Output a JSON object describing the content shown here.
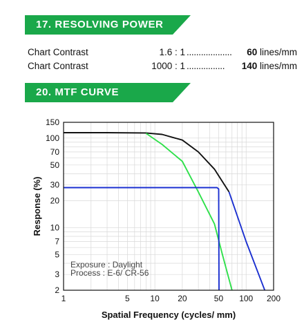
{
  "resolving": {
    "heading": "17.  RESOLVING  POWER",
    "rows": [
      {
        "label": "Chart Contrast",
        "ratio": "1.6 : 1",
        "dots": "...................",
        "value": "60",
        "unit": "lines/mm"
      },
      {
        "label": "Chart Contrast",
        "ratio": "1000 : 1",
        "dots": "................",
        "value": "140",
        "unit": "lines/mm"
      }
    ]
  },
  "mtf": {
    "heading": "20.  MTF  CURVE",
    "note_exposure": "Exposure : Daylight",
    "note_process": "Process   : E-6/ CR-56"
  },
  "colors": {
    "accent": "#1aa84a",
    "black": "#111111",
    "green": "#2ee04a",
    "blue": "#1a2fd0"
  },
  "chart_data": {
    "type": "line",
    "xlabel": "Spatial Frequency (cycles/ mm)",
    "ylabel": "Response (%)",
    "xscale": "log",
    "yscale": "log",
    "xlim": [
      1,
      200
    ],
    "ylim": [
      2,
      150
    ],
    "xticks": [
      1,
      5,
      10,
      20,
      50,
      100,
      200
    ],
    "yticks": [
      150,
      100,
      70,
      50,
      30,
      20,
      10,
      7,
      5,
      3,
      2
    ],
    "series": [
      {
        "color": "#111111",
        "x": [
          1,
          3,
          8,
          12,
          20,
          30,
          45,
          65
        ],
        "y": [
          115,
          115,
          114,
          110,
          95,
          70,
          45,
          25
        ]
      },
      {
        "color": "#2ee04a",
        "x": [
          8,
          12,
          20,
          30,
          45,
          55,
          70
        ],
        "y": [
          113,
          85,
          55,
          25,
          11,
          5,
          2
        ]
      },
      {
        "color": "#1a2fd0",
        "x": [
          1,
          48,
          50,
          50.5
        ],
        "y": [
          28,
          28,
          27,
          2
        ]
      },
      {
        "color": "#1a2fd0",
        "x": [
          65,
          100,
          160
        ],
        "y": [
          25,
          7,
          2
        ]
      }
    ]
  }
}
